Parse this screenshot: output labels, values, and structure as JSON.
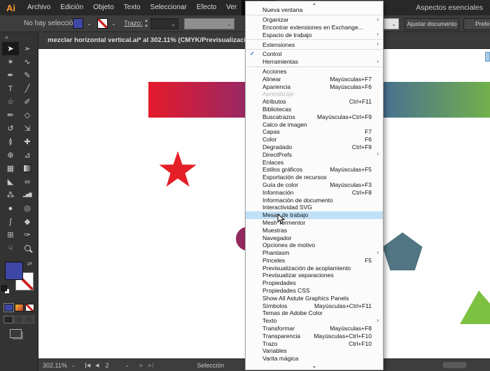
{
  "menubar": {
    "logo": "Ai",
    "items": [
      {
        "label": "Archivo"
      },
      {
        "label": "Edición"
      },
      {
        "label": "Objeto"
      },
      {
        "label": "Texto"
      },
      {
        "label": "Seleccionar"
      },
      {
        "label": "Efecto"
      },
      {
        "label": "Ver"
      },
      {
        "label": "Ventana",
        "active": true
      }
    ],
    "workspace": "Aspectos esenciales"
  },
  "controlbar": {
    "selection_status": "No hay selección",
    "stroke_label": "Trazo:",
    "fill_color": "#3e47a5",
    "fit_button": "Ajustar documento",
    "prefs_button": "Preferencias"
  },
  "icons": {
    "chevron_down": "⌄",
    "scroll_up": "▲",
    "scroll_down": "▼",
    "submenu_arrow": "›",
    "check": "✓",
    "swap": "⇄",
    "collapse": "«",
    "first": "◀",
    "prev": "◀",
    "next": "▶",
    "last": "▶"
  },
  "toolbar": {
    "fill_color": "#3e47a5",
    "tools": [
      {
        "name": "selection-tool",
        "glyph": "➤",
        "selected": true
      },
      {
        "name": "direct-selection-tool",
        "glyph": "➢"
      },
      {
        "name": "magic-wand-tool",
        "glyph": "✶"
      },
      {
        "name": "lasso-tool",
        "glyph": "∿"
      },
      {
        "name": "pen-tool",
        "glyph": "✒"
      },
      {
        "name": "curvature-tool",
        "glyph": "✎"
      },
      {
        "name": "type-tool",
        "glyph": "T"
      },
      {
        "name": "line-segment-tool",
        "glyph": "╱"
      },
      {
        "name": "star-shape-tool",
        "glyph": "☆"
      },
      {
        "name": "paintbrush-tool",
        "glyph": "✐"
      },
      {
        "name": "pencil-tool",
        "glyph": "✏"
      },
      {
        "name": "eraser-tool",
        "glyph": "◇"
      },
      {
        "name": "rotate-tool",
        "glyph": "↺"
      },
      {
        "name": "scale-tool",
        "glyph": "⇲"
      },
      {
        "name": "width-tool",
        "glyph": "≬"
      },
      {
        "name": "puppet-warp-tool",
        "glyph": "✚"
      },
      {
        "name": "shape-builder-tool",
        "glyph": "⊕"
      },
      {
        "name": "perspective-grid-tool",
        "glyph": "⊿"
      },
      {
        "name": "mesh-tool",
        "glyph": "▦"
      },
      {
        "name": "gradient-tool",
        "css": "gradient"
      },
      {
        "name": "eyedropper-tool",
        "glyph": "◣"
      },
      {
        "name": "blend-tool",
        "glyph": "∞"
      },
      {
        "name": "symbol-sprayer-tool",
        "glyph": "⁂"
      },
      {
        "name": "column-graph-tool",
        "glyph": "▂▅▇",
        "small": true
      },
      {
        "name": "blob-brush-tool",
        "glyph": "●"
      },
      {
        "name": "smooth-tool",
        "glyph": "◎"
      },
      {
        "name": "curve-tool",
        "glyph": "∫"
      },
      {
        "name": "slice-tool",
        "glyph": "◆"
      },
      {
        "name": "artboard-tool",
        "glyph": "⊞"
      },
      {
        "name": "draw-tool",
        "glyph": "✑"
      },
      {
        "name": "hand-tool",
        "glyph": "☟"
      },
      {
        "name": "zoom-tool",
        "css": "zoom"
      }
    ]
  },
  "document": {
    "title": "mezclar horizontal vertical.ai* al 302.11% (CMYK/Previsualización de GPU)"
  },
  "menu": {
    "items": [
      {
        "label": "Nueva ventana"
      },
      {
        "type": "sep"
      },
      {
        "label": "Organizar",
        "submenu": true
      },
      {
        "label": "Encontrar extensiones en Exchange..."
      },
      {
        "label": "Espacio de trabajo",
        "submenu": true
      },
      {
        "type": "sep"
      },
      {
        "label": "Extensiones",
        "submenu": true
      },
      {
        "type": "sep"
      },
      {
        "label": "Control",
        "checked": true
      },
      {
        "label": "Herramientas",
        "submenu": true
      },
      {
        "type": "sep"
      },
      {
        "label": "Acciones"
      },
      {
        "label": "Alinear",
        "shortcut": "Mayúsculas+F7"
      },
      {
        "label": "Apariencia",
        "shortcut": "Mayúsculas+F6"
      },
      {
        "label": "Aprendizaje",
        "disabled": true
      },
      {
        "label": "Atributos",
        "shortcut": "Ctrl+F11"
      },
      {
        "label": "Bibliotecas"
      },
      {
        "label": "Buscatrazos",
        "shortcut": "Mayúsculas+Ctrl+F9"
      },
      {
        "label": "Calco de imagen"
      },
      {
        "label": "Capas",
        "shortcut": "F7"
      },
      {
        "label": "Color",
        "shortcut": "F6"
      },
      {
        "label": "Degradado",
        "shortcut": "Ctrl+F9"
      },
      {
        "label": "DirectPrefs",
        "submenu": true
      },
      {
        "label": "Enlaces"
      },
      {
        "label": "Estilos gráficos",
        "shortcut": "Mayúsculas+F5"
      },
      {
        "label": "Exportación de recursos"
      },
      {
        "label": "Guía de color",
        "shortcut": "Mayúsculas+F3"
      },
      {
        "label": "Información",
        "shortcut": "Ctrl+F8"
      },
      {
        "label": "Información de documento"
      },
      {
        "label": "Interactividad SVG"
      },
      {
        "label": "Mesas de trabajo",
        "highlighted": true
      },
      {
        "label": "Mesh Tormentor"
      },
      {
        "label": "Muestras"
      },
      {
        "label": "Navegador"
      },
      {
        "label": "Opciones de motivo"
      },
      {
        "label": "Phantasm",
        "submenu": true
      },
      {
        "label": "Pinceles",
        "shortcut": "F5"
      },
      {
        "label": "Previsualización de acoplamiento"
      },
      {
        "label": "Previsualizar separaciones"
      },
      {
        "label": "Propiedades"
      },
      {
        "label": "Propiedades CSS"
      },
      {
        "label": "Show All Astute Graphics Panels"
      },
      {
        "label": "Símbolos",
        "shortcut": "Mayúsculas+Ctrl+F11"
      },
      {
        "label": "Temas de Adobe Color"
      },
      {
        "label": "Texto",
        "submenu": true
      },
      {
        "label": "Transformar",
        "shortcut": "Mayúsculas+F8"
      },
      {
        "label": "Transparencia",
        "shortcut": "Mayúsculas+Ctrl+F10"
      },
      {
        "label": "Trazo",
        "shortcut": "Ctrl+F10"
      },
      {
        "label": "Variables"
      },
      {
        "label": "Varita mágica"
      }
    ]
  },
  "canvas": {
    "artboard_color": "#ffffff",
    "gradient_bar_stops": [
      "#e51a2b 0%",
      "#8f2a6b 32%",
      "#3f63a0 62%",
      "#71b04b 100%"
    ],
    "star_color": "#e41f27",
    "circle_color": "#93295e",
    "pentagon_color": "#517582",
    "triangle_color": "#7dc142"
  },
  "statusbar": {
    "zoom_level": "302.11%",
    "artboard_number": "2",
    "selection_label": "Selección"
  }
}
